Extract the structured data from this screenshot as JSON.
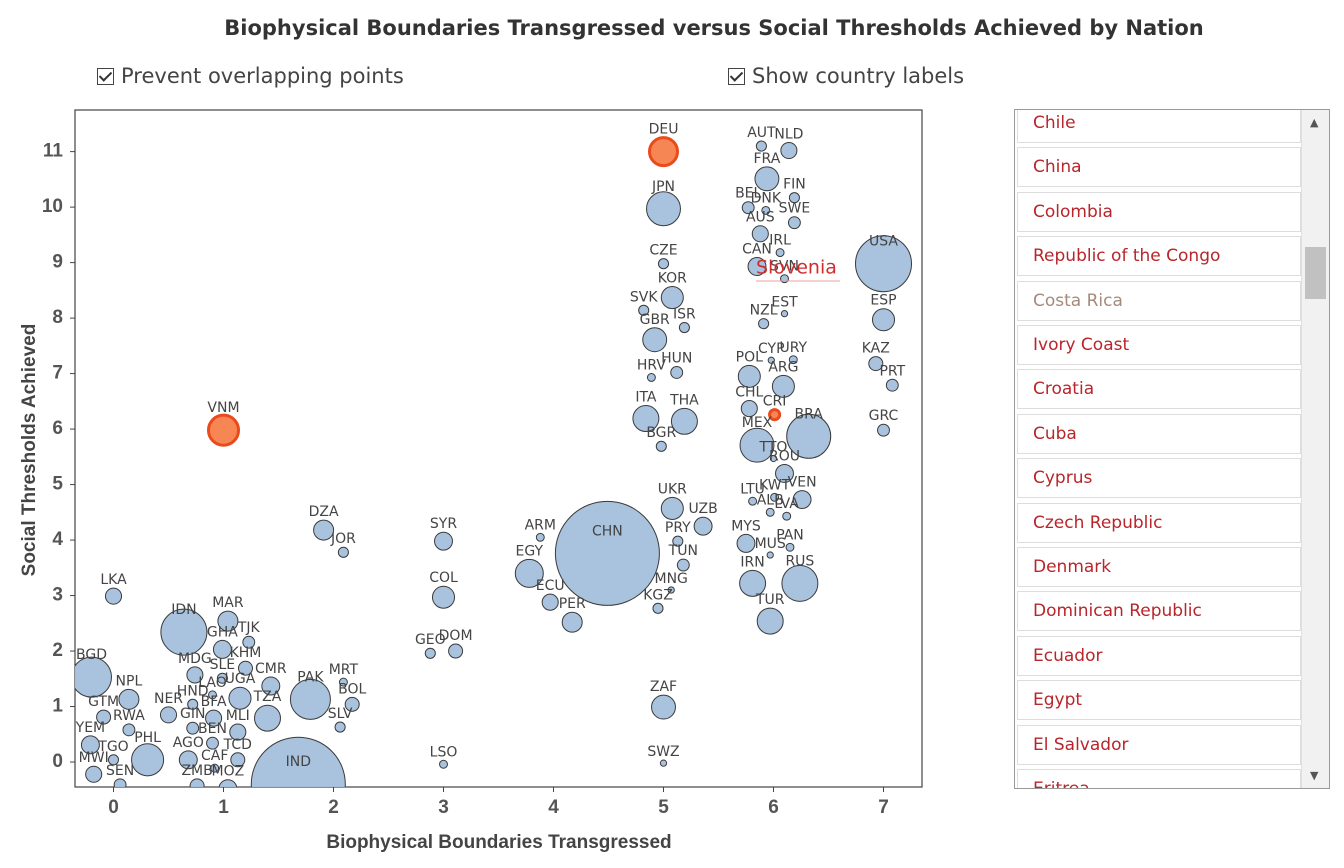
{
  "title": "Biophysical Boundaries Transgressed versus Social Thresholds Achieved by Nation",
  "controls": {
    "prevent_overlap": "Prevent overlapping points",
    "show_labels": "Show country labels"
  },
  "chart_data": {
    "type": "scatter",
    "x_label": "Biophysical Boundaries Transgressed",
    "y_label": "Social Thresholds Achieved",
    "xlim": [
      -0.35,
      7.35
    ],
    "ylim": [
      -0.45,
      11.75
    ],
    "xticks": [
      0,
      1,
      2,
      3,
      4,
      5,
      6,
      7
    ],
    "yticks": [
      0,
      1,
      2,
      3,
      4,
      5,
      6,
      7,
      8,
      9,
      10,
      11
    ],
    "color": "#a4bfdb",
    "stroke": "#3a3a3a",
    "hover_label": "Slovenia",
    "hover_color": "#d22c2c",
    "points": [
      {
        "label": "CHN",
        "x": 4.49,
        "y": 3.76,
        "size": 1380
      },
      {
        "label": "IND",
        "x": 1.68,
        "y": -0.4,
        "size": 1127
      },
      {
        "label": "USA",
        "x": 7.0,
        "y": 8.98,
        "size": 400
      },
      {
        "label": "IDN",
        "x": 0.64,
        "y": 2.34,
        "size": 270
      },
      {
        "label": "BRA",
        "x": 6.32,
        "y": 5.87,
        "size": 247
      },
      {
        "label": "PAK",
        "x": 1.79,
        "y": 1.13,
        "size": 204
      },
      {
        "label": "BGD",
        "x": -0.2,
        "y": 1.53,
        "size": 204
      },
      {
        "label": "RUS",
        "x": 6.24,
        "y": 3.22,
        "size": 165
      },
      {
        "label": "JPN",
        "x": 5.0,
        "y": 9.97,
        "size": 147
      },
      {
        "label": "MEX",
        "x": 5.85,
        "y": 5.71,
        "size": 147
      },
      {
        "label": "PHL",
        "x": 0.31,
        "y": 0.04,
        "size": 131
      },
      {
        "label": "VNM",
        "x": 1.0,
        "y": 5.98,
        "size": 115,
        "color": "#f6814c",
        "stroke": "#ea4a1c"
      },
      {
        "label": "DEU",
        "x": 5.0,
        "y": 11.0,
        "size": 100,
        "color": "#f6814c",
        "stroke": "#ea4a1c"
      },
      {
        "label": "EGY",
        "x": 3.78,
        "y": 3.4,
        "size": 100
      },
      {
        "label": "IRN",
        "x": 5.81,
        "y": 3.22,
        "size": 86
      },
      {
        "label": "TUR",
        "x": 5.97,
        "y": 2.54,
        "size": 86
      },
      {
        "label": "THA",
        "x": 5.19,
        "y": 6.14,
        "size": 86
      },
      {
        "label": "ITA",
        "x": 4.84,
        "y": 6.19,
        "size": 86
      },
      {
        "label": "TZA",
        "x": 1.4,
        "y": 0.79,
        "size": 86
      },
      {
        "label": "FRA",
        "x": 5.94,
        "y": 10.51,
        "size": 73
      },
      {
        "label": "GBR",
        "x": 4.92,
        "y": 7.61,
        "size": 73
      },
      {
        "label": "KOR",
        "x": 5.08,
        "y": 8.37,
        "size": 62
      },
      {
        "label": "COL",
        "x": 3.0,
        "y": 2.97,
        "size": 62
      },
      {
        "label": "ESP",
        "x": 7.0,
        "y": 7.97,
        "size": 62
      },
      {
        "label": "UKR",
        "x": 5.08,
        "y": 4.57,
        "size": 62
      },
      {
        "label": "ARG",
        "x": 6.09,
        "y": 6.77,
        "size": 62
      },
      {
        "label": "POL",
        "x": 5.78,
        "y": 6.95,
        "size": 62
      },
      {
        "label": "UGA",
        "x": 1.15,
        "y": 1.15,
        "size": 62
      },
      {
        "label": "DZA",
        "x": 1.91,
        "y": 4.18,
        "size": 51
      },
      {
        "label": "MAR",
        "x": 1.04,
        "y": 2.54,
        "size": 51
      },
      {
        "label": "PER",
        "x": 4.17,
        "y": 2.52,
        "size": 51
      },
      {
        "label": "NPL",
        "x": 0.14,
        "y": 1.13,
        "size": 51
      },
      {
        "label": "CAN",
        "x": 5.85,
        "y": 8.93,
        "size": 41
      },
      {
        "label": "MYS",
        "x": 5.75,
        "y": 3.94,
        "size": 41
      },
      {
        "label": "VEN",
        "x": 6.26,
        "y": 4.73,
        "size": 41
      },
      {
        "label": "UZB",
        "x": 5.36,
        "y": 4.25,
        "size": 41
      },
      {
        "label": "SYR",
        "x": 3.0,
        "y": 3.98,
        "size": 41
      },
      {
        "label": "ROU",
        "x": 6.1,
        "y": 5.2,
        "size": 41
      },
      {
        "label": "GHA",
        "x": 0.99,
        "y": 2.03,
        "size": 41
      },
      {
        "label": "CMR",
        "x": 1.43,
        "y": 1.37,
        "size": 41
      },
      {
        "label": "MOZ",
        "x": 1.04,
        "y": -0.48,
        "size": 41
      },
      {
        "label": "AGO",
        "x": 0.68,
        "y": 0.04,
        "size": 41
      },
      {
        "label": "AUS",
        "x": 5.88,
        "y": 9.52,
        "size": 33
      },
      {
        "label": "NLD",
        "x": 6.14,
        "y": 11.02,
        "size": 33
      },
      {
        "label": "CHL",
        "x": 5.78,
        "y": 6.37,
        "size": 33
      },
      {
        "label": "ECU",
        "x": 3.97,
        "y": 2.88,
        "size": 33
      },
      {
        "label": "LKA",
        "x": 0.0,
        "y": 2.99,
        "size": 33
      },
      {
        "label": "MDG",
        "x": 0.74,
        "y": 1.57,
        "size": 33
      },
      {
        "label": "NER",
        "x": 0.5,
        "y": 0.85,
        "size": 33
      },
      {
        "label": "BFA",
        "x": 0.91,
        "y": 0.79,
        "size": 33
      },
      {
        "label": "MLI",
        "x": 1.13,
        "y": 0.54,
        "size": 33
      },
      {
        "label": "MWI",
        "x": -0.18,
        "y": -0.22,
        "size": 33
      },
      {
        "label": "YEM",
        "x": -0.21,
        "y": 0.31,
        "size": 41
      },
      {
        "label": "DOM",
        "x": 3.11,
        "y": 2.0,
        "size": 25
      },
      {
        "label": "KAZ",
        "x": 6.93,
        "y": 7.18,
        "size": 25
      },
      {
        "label": "KHM",
        "x": 1.2,
        "y": 1.69,
        "size": 25
      },
      {
        "label": "BOL",
        "x": 2.17,
        "y": 1.04,
        "size": 25
      },
      {
        "label": "GTM",
        "x": -0.09,
        "y": 0.81,
        "size": 25
      },
      {
        "label": "TCD",
        "x": 1.13,
        "y": 0.04,
        "size": 25
      },
      {
        "label": "ZMB",
        "x": 0.76,
        "y": -0.43,
        "size": 25
      },
      {
        "label": "BEL",
        "x": 5.77,
        "y": 9.99,
        "size": 18
      },
      {
        "label": "SWE",
        "x": 6.19,
        "y": 9.72,
        "size": 18
      },
      {
        "label": "PRT",
        "x": 7.08,
        "y": 6.79,
        "size": 18
      },
      {
        "label": "GRC",
        "x": 7.0,
        "y": 5.98,
        "size": 18
      },
      {
        "label": "HUN",
        "x": 5.12,
        "y": 7.02,
        "size": 18
      },
      {
        "label": "TUN",
        "x": 5.18,
        "y": 3.55,
        "size": 18
      },
      {
        "label": "TJK",
        "x": 1.23,
        "y": 2.16,
        "size": 18
      },
      {
        "label": "GIN",
        "x": 0.72,
        "y": 0.61,
        "size": 18
      },
      {
        "label": "BEN",
        "x": 0.9,
        "y": 0.34,
        "size": 18
      },
      {
        "label": "RWA",
        "x": 0.14,
        "y": 0.58,
        "size": 18
      },
      {
        "label": "SEN",
        "x": 0.06,
        "y": -0.41,
        "size": 18
      },
      {
        "label": "AUT",
        "x": 5.89,
        "y": 11.1,
        "size": 13
      },
      {
        "label": "FIN",
        "x": 6.19,
        "y": 10.17,
        "size": 13
      },
      {
        "label": "CZE",
        "x": 5.0,
        "y": 8.98,
        "size": 13
      },
      {
        "label": "SVK",
        "x": 4.82,
        "y": 8.14,
        "size": 13
      },
      {
        "label": "ISR",
        "x": 5.19,
        "y": 7.83,
        "size": 13
      },
      {
        "label": "NZL",
        "x": 5.91,
        "y": 7.9,
        "size": 13
      },
      {
        "label": "BGR",
        "x": 4.98,
        "y": 5.69,
        "size": 13
      },
      {
        "label": "CRI",
        "x": 6.01,
        "y": 6.26,
        "size": 13,
        "color": "#f6814c",
        "stroke": "#ea4a1c"
      },
      {
        "label": "PRY",
        "x": 5.13,
        "y": 3.98,
        "size": 13
      },
      {
        "label": "KGZ",
        "x": 4.95,
        "y": 2.77,
        "size": 13
      },
      {
        "label": "GEO",
        "x": 2.88,
        "y": 1.96,
        "size": 13
      },
      {
        "label": "JOR",
        "x": 2.09,
        "y": 3.78,
        "size": 13
      },
      {
        "label": "SLV",
        "x": 2.06,
        "y": 0.63,
        "size": 13
      },
      {
        "label": "HND",
        "x": 0.72,
        "y": 1.04,
        "size": 13
      },
      {
        "label": "SLE",
        "x": 0.99,
        "y": 1.51,
        "size": 13
      },
      {
        "label": "TGO",
        "x": 0.0,
        "y": 0.04,
        "size": 13
      },
      {
        "label": "DNK",
        "x": 5.93,
        "y": 9.94,
        "size": 8
      },
      {
        "label": "IRL",
        "x": 6.06,
        "y": 9.18,
        "size": 8
      },
      {
        "label": "SVN",
        "x": 6.1,
        "y": 8.71,
        "size": 8
      },
      {
        "label": "HRV",
        "x": 4.89,
        "y": 6.93,
        "size": 8
      },
      {
        "label": "URY",
        "x": 6.18,
        "y": 7.25,
        "size": 8
      },
      {
        "label": "LTU",
        "x": 5.81,
        "y": 4.7,
        "size": 8
      },
      {
        "label": "KWT",
        "x": 6.01,
        "y": 4.77,
        "size": 8
      },
      {
        "label": "ALB",
        "x": 5.97,
        "y": 4.5,
        "size": 8
      },
      {
        "label": "LVA",
        "x": 6.12,
        "y": 4.43,
        "size": 8
      },
      {
        "label": "PAN",
        "x": 6.15,
        "y": 3.87,
        "size": 8
      },
      {
        "label": "ARM",
        "x": 3.88,
        "y": 4.05,
        "size": 8
      },
      {
        "label": "LSO",
        "x": 3.0,
        "y": -0.04,
        "size": 8
      },
      {
        "label": "MRT",
        "x": 2.09,
        "y": 1.44,
        "size": 8
      },
      {
        "label": "LAO",
        "x": 0.9,
        "y": 1.21,
        "size": 8
      },
      {
        "label": "CAF",
        "x": 0.92,
        "y": -0.11,
        "size": 8
      },
      {
        "label": "EST",
        "x": 6.1,
        "y": 8.08,
        "size": 5
      },
      {
        "label": "CYP",
        "x": 5.98,
        "y": 7.24,
        "size": 5
      },
      {
        "label": "TTO",
        "x": 6.0,
        "y": 5.47,
        "size": 5
      },
      {
        "label": "MUS",
        "x": 5.97,
        "y": 3.73,
        "size": 5
      },
      {
        "label": "MNG",
        "x": 5.07,
        "y": 3.1,
        "size": 5
      },
      {
        "label": "SWZ",
        "x": 5.0,
        "y": -0.02,
        "size": 5
      },
      {
        "label": "ZAF",
        "x": 5.0,
        "y": 0.99,
        "size": 73
      }
    ]
  },
  "country_list": {
    "color": "#b8252a",
    "items": [
      {
        "label": "Chile"
      },
      {
        "label": "China"
      },
      {
        "label": "Colombia"
      },
      {
        "label": "Republic of the Congo"
      },
      {
        "label": "Costa Rica",
        "color": "#a58a7c"
      },
      {
        "label": "Ivory Coast"
      },
      {
        "label": "Croatia"
      },
      {
        "label": "Cuba"
      },
      {
        "label": "Cyprus"
      },
      {
        "label": "Czech Republic"
      },
      {
        "label": "Denmark"
      },
      {
        "label": "Dominican Republic"
      },
      {
        "label": "Ecuador"
      },
      {
        "label": "Egypt"
      },
      {
        "label": "El Salvador"
      },
      {
        "label": "Eritrea"
      }
    ]
  }
}
